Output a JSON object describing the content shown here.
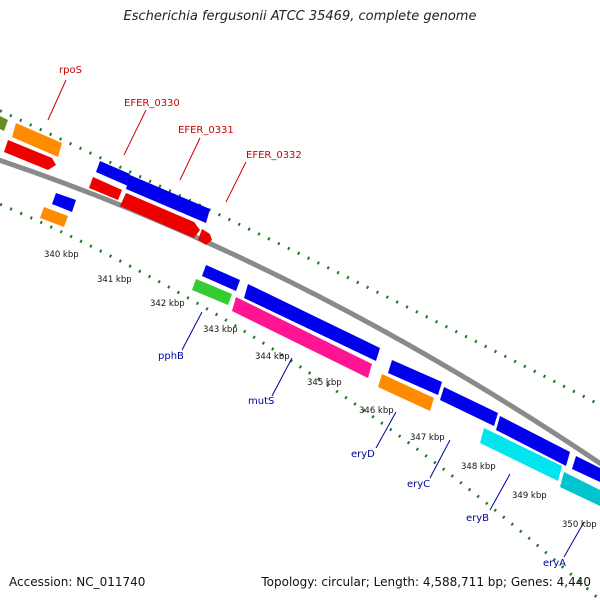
{
  "title": "Escherichia fergusonii ATCC 35469, complete genome",
  "footer": {
    "accession": "Accession: NC_011740",
    "summary": "Topology: circular; Length: 4,588,711 bp; Genes: 4,440"
  },
  "colors": {
    "backbone": "#8a8a8a",
    "tick_dots": "#1f7a1f",
    "label_red": "#cc0000",
    "label_blue": "#000099",
    "gene_blue": "#0000ee",
    "gene_red": "#ee0000",
    "gene_orange": "#ff8c00",
    "gene_green": "#33cc33",
    "gene_magenta": "#ff1493",
    "gene_cyan": "#00e5ee",
    "gene_olive": "#6b8e23",
    "gene_teal": "#00c5cd"
  },
  "kbp_labels": [
    "340 kbp",
    "341 kbp",
    "342 kbp",
    "343 kbp",
    "344 kbp",
    "345 kbp",
    "346 kbp",
    "347 kbp",
    "348 kbp",
    "349 kbp",
    "350 kbp"
  ],
  "top_labels": [
    "rpoS",
    "EFER_0330",
    "EFER_0331",
    "EFER_0332"
  ],
  "bottom_labels": [
    "pphB",
    "mutS",
    "eryD",
    "eryC",
    "eryB",
    "eryA"
  ]
}
